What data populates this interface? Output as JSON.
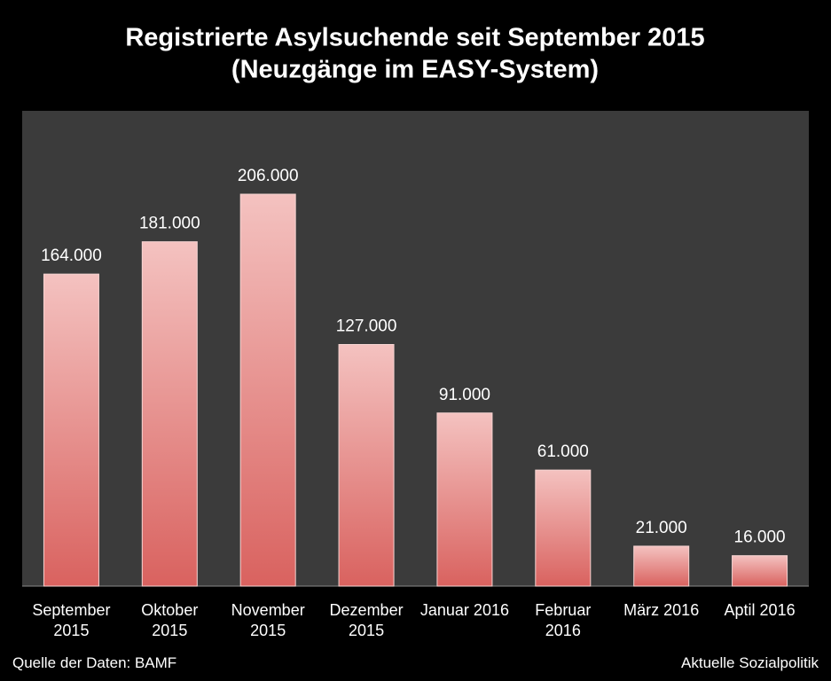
{
  "chart_data": {
    "type": "bar",
    "title": "Registrierte Asylsuchende seit September 2015",
    "subtitle": "(Neuzgänge im EASY-System)",
    "categories": [
      "September 2015",
      "Oktober 2015",
      "November 2015",
      "Dezember 2015",
      "Januar 2016",
      "Februar 2016",
      "März 2016",
      "Aptil 2016"
    ],
    "values": [
      164000,
      181000,
      206000,
      127000,
      91000,
      61000,
      21000,
      16000
    ],
    "value_labels": [
      "164.000",
      "181.000",
      "206.000",
      "127.000",
      "91.000",
      "61.000",
      "21.000",
      "16.000"
    ],
    "color": "#d9625f",
    "source": "Quelle der Daten: BAMF",
    "credit": "Aktuelle Sozialpolitik"
  }
}
